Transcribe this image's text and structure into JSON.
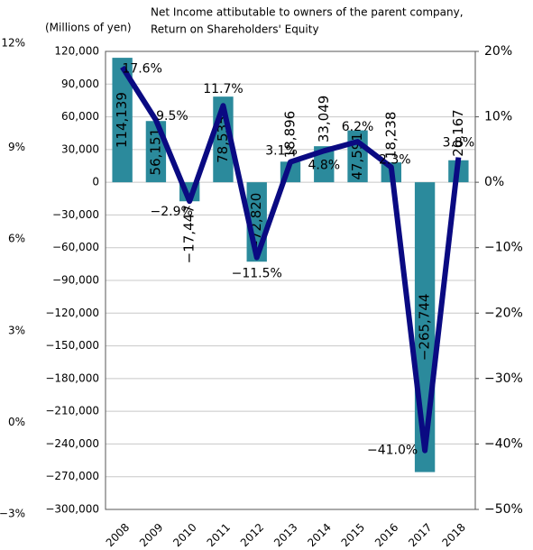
{
  "chart_data": {
    "type": "bar-line",
    "title": "Net Income attibutable to owners of the parent company,",
    "subtitle": "Return on Shareholders' Equity",
    "y_label": "(Millions of yen)",
    "categories": [
      "2008",
      "2009",
      "2010",
      "2011",
      "2012",
      "2013",
      "2014",
      "2015",
      "2016",
      "2017",
      "2018"
    ],
    "series": [
      {
        "name": "Net Income",
        "color": "#2b8a9c",
        "values": [
          114139,
          56151,
          -17447,
          78535,
          -72820,
          18896,
          33049,
          47591,
          18238,
          -265744,
          20167
        ],
        "value_labels": [
          "114,139",
          "56,151",
          "−17,447",
          "78,535",
          "−72,820",
          "18,896",
          "33,049",
          "47,591",
          "18,238",
          "−265,744",
          "20,167"
        ]
      },
      {
        "name": "ROE",
        "color": "#0a0a82",
        "axis": "y2",
        "values": [
          17.6,
          9.5,
          -2.9,
          11.7,
          -11.5,
          3.1,
          4.8,
          6.2,
          2.3,
          -41.0,
          3.8
        ],
        "value_labels": [
          "17.6%",
          "9.5%",
          "−2.9%",
          "11.7%",
          "−11.5%",
          "3.1%",
          "4.8%",
          "6.2%",
          "2.3%",
          "−41.0%",
          "3.8%"
        ]
      }
    ],
    "ylim": [
      -300000,
      120000
    ],
    "yticks": [
      {
        "value": 120000,
        "label": "120,000"
      },
      {
        "value": 90000,
        "label": "90,000"
      },
      {
        "value": 60000,
        "label": "60,000"
      },
      {
        "value": 30000,
        "label": "30,000"
      },
      0,
      {
        "value": -30000,
        "label": "−30,000"
      },
      {
        "value": -60000,
        "label": "−60,000"
      },
      {
        "value": -90000,
        "label": "−90,000"
      },
      {
        "value": -120000,
        "label": "−120,000"
      },
      {
        "value": -150000,
        "label": "−150,000"
      },
      {
        "value": -180000,
        "label": "−180,000"
      },
      {
        "value": -210000,
        "label": "−210,000"
      },
      {
        "value": -240000,
        "label": "−240,000"
      },
      {
        "value": -270000,
        "label": "−270,000"
      },
      {
        "value": -300000,
        "label": "−300,000"
      }
    ],
    "y2lim": [
      -50,
      20
    ],
    "y2ticks": [
      {
        "value": 20,
        "label": "20%"
      },
      {
        "value": 10,
        "label": "10%"
      },
      {
        "value": 0,
        "label": "0%"
      },
      {
        "value": -10,
        "label": "−10%"
      },
      {
        "value": -20,
        "label": "−20%"
      },
      {
        "value": -30,
        "label": "−30%"
      },
      {
        "value": -40,
        "label": "−40%"
      },
      {
        "value": -50,
        "label": "−50%"
      }
    ],
    "y3lim": [
      -3,
      12
    ],
    "y3ticks": [
      {
        "value": 12,
        "label": "12%"
      },
      {
        "value": 9,
        "label": "9%"
      },
      {
        "value": 6,
        "label": "6%"
      },
      {
        "value": 3,
        "label": "3%"
      },
      {
        "value": 0,
        "label": "0%"
      },
      {
        "value": -3,
        "label": "−3%"
      }
    ],
    "grid": true
  }
}
